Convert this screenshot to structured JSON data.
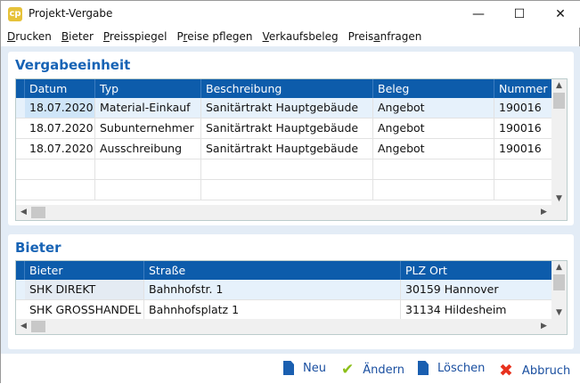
{
  "window": {
    "title": "Projekt-Vergabe",
    "minimize": "—",
    "maximize": "☐",
    "close": "✕"
  },
  "menu": [
    {
      "u": "D",
      "rest": "rucken"
    },
    {
      "u": "B",
      "rest": "ieter"
    },
    {
      "u": "P",
      "rest": "reisspiegel"
    },
    {
      "pre": "P",
      "u": "r",
      "rest": "eise pflegen"
    },
    {
      "u": "V",
      "rest": "erkaufsbeleg"
    },
    {
      "pre": "Preis",
      "u": "a",
      "rest": "nfragen"
    }
  ],
  "vergabe": {
    "title": "Vergabeeinheit",
    "columns": [
      "Datum",
      "Typ",
      "Beschreibung",
      "Beleg",
      "Nummer"
    ],
    "rows": [
      [
        "18.07.2020",
        "Material-Einkauf",
        "Sanitärtrakt Hauptgebäude",
        "Angebot",
        "190016"
      ],
      [
        "18.07.2020",
        "Subunternehmer",
        "Sanitärtrakt Hauptgebäude",
        "Angebot",
        "190016"
      ],
      [
        "18.07.2020",
        "Ausschreibung",
        "Sanitärtrakt Hauptgebäude",
        "Angebot",
        "190016"
      ]
    ]
  },
  "bieter": {
    "title": "Bieter",
    "columns": [
      "Bieter",
      "Straße",
      "PLZ Ort"
    ],
    "rows": [
      [
        "SHK DIREKT",
        "Bahnhofstr. 1",
        "30159 Hannover"
      ],
      [
        "SHK GROSSHANDEL",
        "Bahnhofsplatz 1",
        "31134 Hildesheim"
      ]
    ]
  },
  "footer": {
    "neu": "Neu",
    "aendern": "Ändern",
    "loeschen": "Löschen",
    "abbruch": "Abbruch"
  },
  "colors": {
    "header": "#0d5cab",
    "accent": "#1763b5",
    "check": "#8cbf1a",
    "cancel": "#e8321e"
  }
}
